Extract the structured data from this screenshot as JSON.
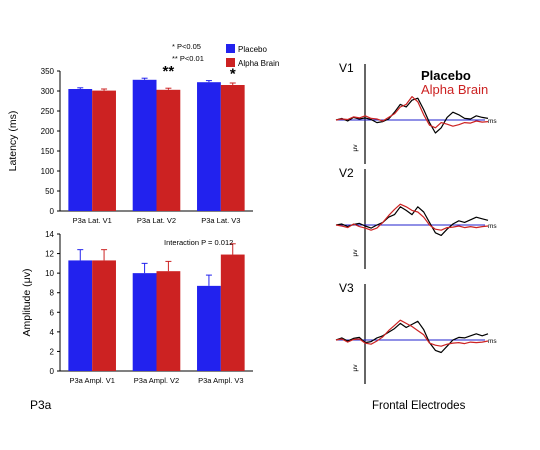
{
  "colors": {
    "placebo": "#2222ee",
    "alpha": "#cc2222",
    "baseline": "#2222cc",
    "axis": "#000000"
  },
  "panel_label": "P3a",
  "electrode_label": "Frontal Electrodes",
  "significance_key": [
    "* P<0.05",
    "** P<0.01"
  ],
  "chart_data": [
    {
      "type": "bar",
      "ylabel": "Latency (ms)",
      "ylim": [
        0,
        350
      ],
      "yticks": [
        0,
        50,
        100,
        150,
        200,
        250,
        300,
        350
      ],
      "categories": [
        "P3a Lat. V1",
        "P3a Lat. V2",
        "P3a Lat. V3"
      ],
      "series": [
        {
          "name": "Placebo",
          "values": [
            305,
            328,
            322
          ],
          "errors": [
            3,
            4,
            4
          ]
        },
        {
          "name": "Alpha Brain",
          "values": [
            301,
            303,
            315
          ],
          "errors": [
            4,
            4,
            5
          ]
        }
      ],
      "significance": [
        "",
        "**",
        "*"
      ],
      "legend": "top-right"
    },
    {
      "type": "bar",
      "ylabel": "Amplitude (μv)",
      "ylim": [
        0,
        14
      ],
      "yticks": [
        0,
        2,
        4,
        6,
        8,
        10,
        12,
        14
      ],
      "categories": [
        "P3a Ampl. V1",
        "P3a Ampl. V2",
        "P3a Ampl. V3"
      ],
      "series": [
        {
          "name": "Placebo",
          "values": [
            11.3,
            10.0,
            8.7
          ],
          "errors": [
            1.1,
            1.0,
            1.1
          ]
        },
        {
          "name": "Alpha Brain",
          "values": [
            11.3,
            10.2,
            11.9
          ],
          "errors": [
            1.1,
            1.0,
            1.1
          ]
        }
      ],
      "annotation": "Interaction P = 0.012"
    },
    {
      "type": "line",
      "legend": [
        "Placebo",
        "Alpha Brain"
      ],
      "panels": [
        {
          "label": "V1",
          "x_unit": "ms",
          "y_unit": "μv",
          "series": [
            {
              "name": "Placebo",
              "values": [
                0,
                0.3,
                -0.2,
                0.5,
                0.2,
                0.4,
                0.1,
                -0.5,
                -0.3,
                0.2,
                1.5,
                3.0,
                2.5,
                3.8,
                4.2,
                2.0,
                -0.5,
                -2.5,
                -1.5,
                0.5,
                1.5,
                1.0,
                0.3,
                0.2,
                0.8,
                0.5,
                0.3
              ]
            },
            {
              "name": "Alpha Brain",
              "values": [
                0,
                0.2,
                0.1,
                0.6,
                0.4,
                0.8,
                0.3,
                0.2,
                -0.2,
                0.5,
                1.2,
                2.5,
                3.0,
                4.5,
                3.5,
                1.0,
                -1.0,
                -1.5,
                -0.5,
                -0.8,
                -1.2,
                -0.9,
                -0.5,
                -0.6,
                -0.2,
                -0.4,
                -0.3
              ]
            }
          ]
        },
        {
          "label": "V2",
          "x_unit": "ms",
          "y_unit": "μv",
          "series": [
            {
              "name": "Placebo",
              "values": [
                0,
                0.2,
                -0.3,
                0.1,
                0.3,
                -0.2,
                -0.6,
                0.0,
                0.5,
                1.5,
                2.0,
                3.5,
                2.8,
                2.0,
                3.5,
                2.5,
                0.5,
                -1.5,
                -2.0,
                -0.8,
                0.2,
                0.8,
                0.5,
                1.0,
                1.5,
                1.2,
                0.9
              ]
            },
            {
              "name": "Alpha Brain",
              "values": [
                0,
                -0.2,
                -0.5,
                0.2,
                -0.3,
                -0.6,
                -1.0,
                -0.6,
                0.5,
                1.8,
                3.0,
                4.0,
                3.5,
                2.8,
                2.5,
                1.5,
                0.0,
                -0.8,
                -1.0,
                -0.5,
                -0.4,
                -0.2,
                -0.5,
                -0.3,
                -0.5,
                -0.3,
                -0.2
              ]
            }
          ]
        },
        {
          "label": "V3",
          "x_unit": "ms",
          "y_unit": "μv",
          "series": [
            {
              "name": "Placebo",
              "values": [
                0,
                0.4,
                -0.2,
                0.3,
                0.5,
                -0.5,
                -0.3,
                0.4,
                0.8,
                1.5,
                2.2,
                3.2,
                2.4,
                3.0,
                3.6,
                2.0,
                -0.5,
                -2.0,
                -2.4,
                -1.2,
                0.0,
                0.5,
                0.4,
                0.8,
                1.2,
                0.8,
                1.2
              ]
            },
            {
              "name": "Alpha Brain",
              "values": [
                0,
                0.2,
                -0.4,
                0.1,
                0.2,
                -0.6,
                -0.8,
                -0.2,
                0.6,
                1.8,
                2.8,
                3.8,
                3.2,
                2.6,
                1.8,
                1.0,
                -0.6,
                -1.0,
                -1.2,
                -0.8,
                -0.6,
                -0.5,
                -0.7,
                -0.4,
                -0.5,
                -0.4,
                -0.2
              ]
            }
          ]
        }
      ]
    }
  ]
}
